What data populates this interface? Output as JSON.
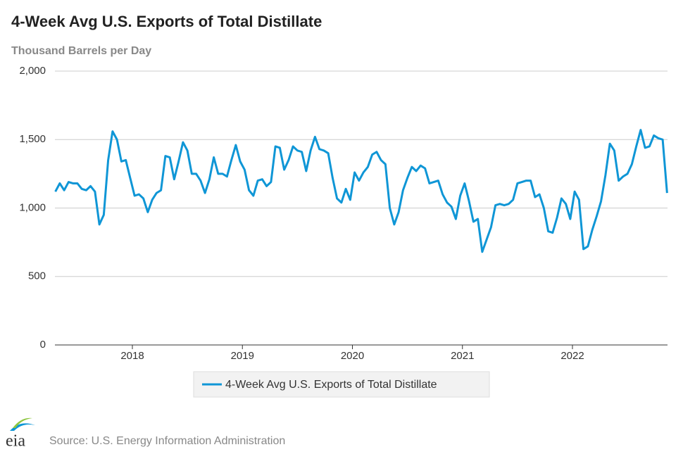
{
  "chart_data": {
    "type": "line",
    "title": "4-Week Avg U.S. Exports of Total Distillate",
    "subtitle": "Thousand Barrels per Day",
    "source": "Source: U.S. Energy Information Administration",
    "logo": "eia",
    "x": [
      2017.3,
      2017.34,
      2017.38,
      2017.42,
      2017.46,
      2017.5,
      2017.54,
      2017.58,
      2017.62,
      2017.66,
      2017.7,
      2017.74,
      2017.78,
      2017.82,
      2017.86,
      2017.9,
      2017.94,
      2017.98,
      2018.02,
      2018.06,
      2018.1,
      2018.14,
      2018.18,
      2018.22,
      2018.26,
      2018.3,
      2018.34,
      2018.38,
      2018.42,
      2018.46,
      2018.5,
      2018.54,
      2018.58,
      2018.62,
      2018.66,
      2018.7,
      2018.74,
      2018.78,
      2018.82,
      2018.86,
      2018.9,
      2018.94,
      2018.98,
      2019.02,
      2019.06,
      2019.1,
      2019.14,
      2019.18,
      2019.22,
      2019.26,
      2019.3,
      2019.34,
      2019.38,
      2019.42,
      2019.46,
      2019.5,
      2019.54,
      2019.58,
      2019.62,
      2019.66,
      2019.7,
      2019.74,
      2019.78,
      2019.82,
      2019.86,
      2019.9,
      2019.94,
      2019.98,
      2020.02,
      2020.06,
      2020.1,
      2020.14,
      2020.18,
      2020.22,
      2020.26,
      2020.3,
      2020.34,
      2020.38,
      2020.42,
      2020.46,
      2020.5,
      2020.54,
      2020.58,
      2020.62,
      2020.66,
      2020.7,
      2020.74,
      2020.78,
      2020.82,
      2020.86,
      2020.9,
      2020.94,
      2020.98,
      2021.02,
      2021.06,
      2021.1,
      2021.14,
      2021.18,
      2021.22,
      2021.26,
      2021.3,
      2021.34,
      2021.38,
      2021.42,
      2021.46,
      2021.5,
      2021.54,
      2021.58,
      2021.62,
      2021.66,
      2021.7,
      2021.74,
      2021.78,
      2021.82,
      2021.86,
      2021.9,
      2021.94,
      2021.98,
      2022.02,
      2022.06,
      2022.1,
      2022.14,
      2022.18,
      2022.22,
      2022.26,
      2022.3,
      2022.34,
      2022.38,
      2022.42,
      2022.46,
      2022.5,
      2022.54,
      2022.58,
      2022.62,
      2022.66,
      2022.7,
      2022.74,
      2022.78,
      2022.82,
      2022.86
    ],
    "series": [
      {
        "name": "4-Week Avg U.S. Exports of Total Distillate",
        "color": "#0f96d6",
        "values": [
          1120,
          1180,
          1130,
          1190,
          1180,
          1180,
          1140,
          1130,
          1160,
          1120,
          880,
          950,
          1350,
          1560,
          1500,
          1340,
          1350,
          1220,
          1090,
          1100,
          1070,
          970,
          1060,
          1110,
          1130,
          1380,
          1370,
          1210,
          1340,
          1480,
          1420,
          1250,
          1250,
          1200,
          1110,
          1210,
          1370,
          1250,
          1250,
          1230,
          1350,
          1460,
          1340,
          1280,
          1130,
          1090,
          1200,
          1210,
          1160,
          1190,
          1450,
          1440,
          1280,
          1350,
          1450,
          1420,
          1410,
          1270,
          1420,
          1520,
          1430,
          1420,
          1400,
          1220,
          1070,
          1040,
          1140,
          1060,
          1260,
          1200,
          1260,
          1300,
          1390,
          1410,
          1350,
          1320,
          1000,
          880,
          970,
          1130,
          1220,
          1300,
          1270,
          1310,
          1290,
          1180,
          1190,
          1200,
          1100,
          1040,
          1010,
          920,
          1090,
          1180,
          1050,
          900,
          920,
          680,
          770,
          860,
          1020,
          1030,
          1020,
          1030,
          1060,
          1180,
          1190,
          1200,
          1200,
          1080,
          1100,
          1000,
          830,
          820,
          930,
          1070,
          1030,
          920,
          1120,
          1060,
          700,
          720,
          840,
          940,
          1050,
          1240,
          1470,
          1420,
          1200,
          1230,
          1250,
          1320,
          1450,
          1570,
          1440,
          1450,
          1530,
          1510,
          1500,
          1110
        ]
      }
    ],
    "xlim": [
      2017.296,
      2022.864
    ],
    "xticks": [
      2018,
      2019,
      2020,
      2021,
      2022
    ],
    "ylim": [
      0,
      2000
    ],
    "yticks": [
      0,
      {
        "value": 500,
        "label": "500"
      },
      {
        "value": 1000,
        "label": "1,000"
      },
      {
        "value": 1500,
        "label": "1,500"
      },
      {
        "value": 2000,
        "label": "2,000"
      }
    ],
    "grid": true
  }
}
